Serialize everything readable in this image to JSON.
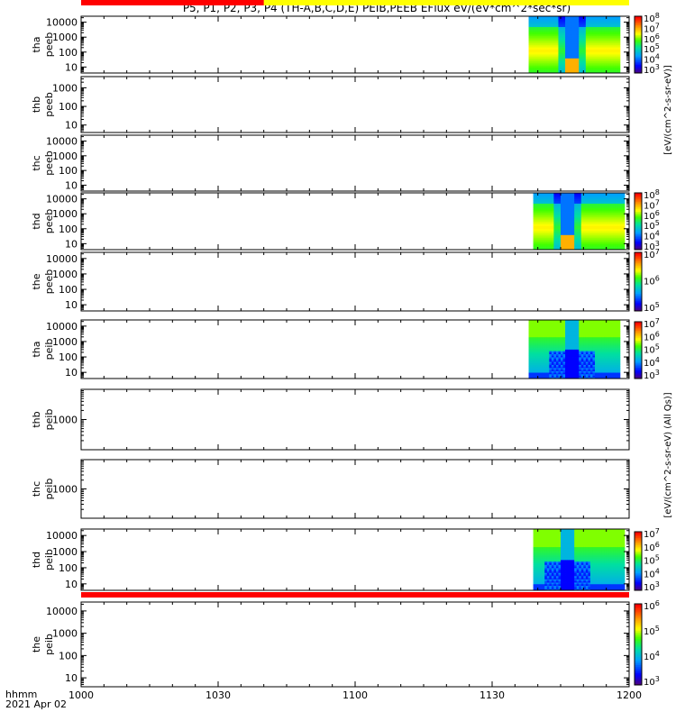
{
  "title": "P5, P1, P2, P3, P4 (TH-A,B,C,D,E) PEIB,PEEB EFlux eV/(eV*cm^2*sec*sr)",
  "x_axis": {
    "tick_labels": [
      "1000",
      "1030",
      "1100",
      "1130",
      "1200"
    ],
    "corner_label": "hhmm",
    "date_label": "2021 Apr 02"
  },
  "colorbar_units_1": "[eV/(cm^2-s-sr-eV)]",
  "colorbar_units_2": "[eV/(cm^2-s-sr-eV) (All Qs)]",
  "chart_data": {
    "type": "heatmap",
    "time_range_minutes": [
      0,
      120
    ],
    "time_tick_minutes": [
      0,
      30,
      60,
      90,
      120
    ],
    "panels": [
      {
        "probe": "tha",
        "product": "peeb",
        "yticks": [
          "10",
          "100",
          "1000",
          "10000"
        ],
        "ylim_log": [
          0.6,
          4.4
        ],
        "data_span_min": [
          98,
          118
        ],
        "dip_min": 107.5,
        "pattern": "electron-a",
        "cbar": [
          "10^3",
          "10^4",
          "10^5",
          "10^6",
          "10^7",
          "10^8"
        ]
      },
      {
        "probe": "thb",
        "product": "peeb",
        "yticks": [
          "10",
          "100",
          "1000"
        ],
        "ylim_log": [
          0.6,
          3.6
        ],
        "data_span_min": null,
        "dip_min": null,
        "pattern": "none",
        "cbar": []
      },
      {
        "probe": "thc",
        "product": "peeb",
        "yticks": [
          "10",
          "100",
          "1000",
          "10000"
        ],
        "ylim_log": [
          0.6,
          4.4
        ],
        "data_span_min": null,
        "dip_min": null,
        "pattern": "none",
        "cbar": []
      },
      {
        "probe": "thd",
        "product": "peeb",
        "yticks": [
          "10",
          "100",
          "1000",
          "10000"
        ],
        "ylim_log": [
          0.6,
          4.4
        ],
        "data_span_min": [
          99,
          119
        ],
        "dip_min": 106.5,
        "pattern": "electron-d",
        "cbar": [
          "10^3",
          "10^4",
          "10^5",
          "10^6",
          "10^7",
          "10^8"
        ]
      },
      {
        "probe": "the",
        "product": "peeb",
        "yticks": [
          "10",
          "100",
          "1000",
          "10000"
        ],
        "ylim_log": [
          0.6,
          4.4
        ],
        "data_span_min": null,
        "dip_min": null,
        "pattern": "none",
        "cbar": [
          "10^5",
          "10^6",
          "10^7"
        ]
      },
      {
        "probe": "tha",
        "product": "peib",
        "yticks": [
          "10",
          "100",
          "1000",
          "10000"
        ],
        "ylim_log": [
          0.6,
          4.4
        ],
        "data_span_min": [
          98,
          118
        ],
        "dip_min": 107.5,
        "pattern": "ion-a",
        "cbar": [
          "10^3",
          "10^4",
          "10^5",
          "10^6",
          "10^7"
        ]
      },
      {
        "probe": "thb",
        "product": "peib",
        "yticks": [
          "1000"
        ],
        "ylim_log": [
          2.0,
          4.0
        ],
        "data_span_min": null,
        "dip_min": null,
        "pattern": "none",
        "cbar": []
      },
      {
        "probe": "thc",
        "product": "peib",
        "yticks": [
          "1000"
        ],
        "ylim_log": [
          2.0,
          4.0
        ],
        "data_span_min": null,
        "dip_min": null,
        "pattern": "none",
        "cbar": []
      },
      {
        "probe": "thd",
        "product": "peib",
        "yticks": [
          "10",
          "100",
          "1000",
          "10000"
        ],
        "ylim_log": [
          0.6,
          4.4
        ],
        "data_span_min": [
          99,
          119
        ],
        "dip_min": 106.5,
        "pattern": "ion-d",
        "cbar": [
          "10^3",
          "10^4",
          "10^5",
          "10^6",
          "10^7"
        ]
      },
      {
        "probe": "the",
        "product": "peib",
        "yticks": [
          "10",
          "100",
          "1000",
          "10000"
        ],
        "ylim_log": [
          0.6,
          4.4
        ],
        "data_span_min": null,
        "dip_min": null,
        "pattern": "none",
        "cbar": [
          "10^3",
          "10^4",
          "10^5",
          "10^6"
        ]
      }
    ],
    "status_bars": [
      {
        "after_panel": 4,
        "segments": [
          {
            "from": 0,
            "to": 120,
            "color": "#ff0000"
          }
        ]
      },
      {
        "after_panel": 5,
        "segments": [
          {
            "from": 0,
            "to": 120,
            "color": "#ffff00"
          }
        ]
      },
      {
        "after_panel": 6,
        "segments": [
          {
            "from": 0,
            "to": 120,
            "color": "#ffff00"
          }
        ]
      },
      {
        "after_panel": 7,
        "segments": [
          {
            "from": 0,
            "to": 120,
            "color": "#ff0000"
          }
        ]
      },
      {
        "after_panel": 8,
        "segments": [
          {
            "from": 0,
            "to": 40,
            "color": "#ff0000"
          },
          {
            "from": 40,
            "to": 120,
            "color": "#ffff00"
          }
        ]
      }
    ]
  }
}
